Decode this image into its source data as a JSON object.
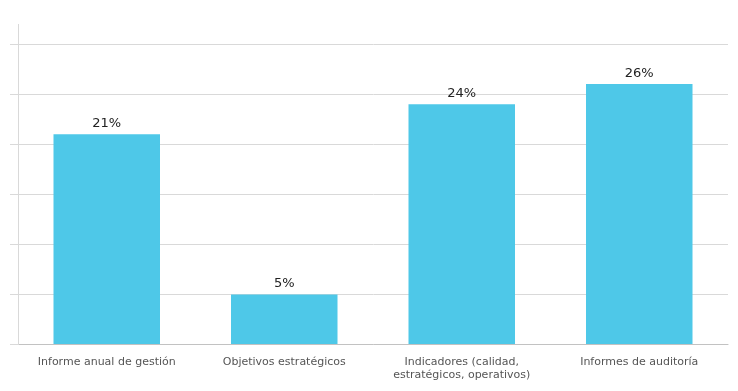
{
  "chart_data": {
    "type": "bar",
    "categories": [
      "Informe anual de gestión",
      "Objetivos estratégicos",
      "Indicadores (calidad,\nestratégicos, operativos)",
      "Informes de auditoría"
    ],
    "values": [
      21,
      5,
      24,
      26
    ],
    "value_labels": [
      "21%",
      "5%",
      "24%",
      "26%"
    ],
    "data_labels": true,
    "color": "#4EC8E8",
    "ylim": [
      0,
      32
    ],
    "yticks": [
      0,
      5,
      10,
      15,
      20,
      25,
      30
    ],
    "grid": true,
    "tick_labels": "x"
  }
}
